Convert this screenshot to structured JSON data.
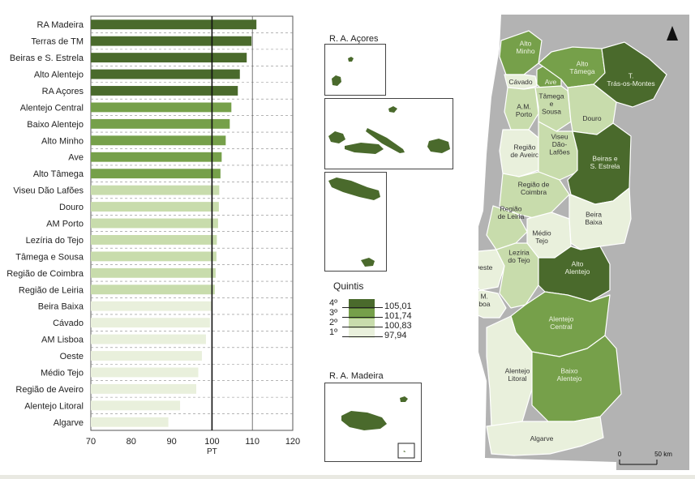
{
  "colors": {
    "q4": "#4a6a2c",
    "q3": "#76a04a",
    "q2": "#c8dcac",
    "q1": "#e9f0dc",
    "sea": "#b3b3b3",
    "map_line": "#ffffff"
  },
  "chart_data": {
    "type": "bar",
    "orientation": "horizontal",
    "categories": [
      "RA Madeira",
      "Terras de TM",
      "Beiras e S. Estrela",
      "Alto Alentejo",
      "RA Açores",
      "Alentejo Central",
      "Baixo Alentejo",
      "Alto Minho",
      "Ave",
      "Alto Tâmega",
      "Viseu Dão Lafões",
      "Douro",
      "AM Porto",
      "Lezíria do Tejo",
      "Tâmega e Sousa",
      "Região de Coimbra",
      "Região de Leiria",
      "Beira Baixa",
      "Cávado",
      "AM Lisboa",
      "Oeste",
      "Médio Tejo",
      "Região de Aveiro",
      "Alentejo Litoral",
      "Algarve"
    ],
    "values": [
      111.0,
      109.8,
      108.6,
      106.9,
      106.4,
      104.8,
      104.4,
      103.4,
      102.4,
      102.1,
      101.8,
      101.7,
      101.5,
      101.2,
      101.1,
      100.9,
      100.7,
      100.0,
      99.5,
      98.5,
      97.5,
      96.6,
      96.1,
      92.1,
      89.2
    ],
    "quintile": [
      4,
      4,
      4,
      4,
      4,
      3,
      3,
      3,
      3,
      3,
      2,
      2,
      2,
      2,
      2,
      2,
      2,
      1,
      1,
      1,
      1,
      1,
      1,
      1,
      1
    ],
    "xlim": [
      70,
      120
    ],
    "xticks": [
      "70",
      "80",
      "90",
      "100",
      "110",
      "120"
    ],
    "xlabel": "PT",
    "reference_line": 100,
    "grid": true
  },
  "insets": {
    "acores_title": "R. A. Açores",
    "madeira_title": "R. A. Madeira"
  },
  "legend": {
    "title": "Quintis",
    "classes": [
      {
        "label": "4º",
        "color_key": "q4",
        "threshold": "105,01"
      },
      {
        "label": "3º",
        "color_key": "q3",
        "threshold": "101,74"
      },
      {
        "label": "2º",
        "color_key": "q2",
        "threshold": "100,83"
      },
      {
        "label": "1º",
        "color_key": "q1",
        "threshold": "97,94"
      }
    ]
  },
  "map": {
    "regions": [
      {
        "name": "Alto Minho",
        "lines": [
          "Alto",
          "Minho"
        ],
        "q": 3
      },
      {
        "name": "Cávado",
        "lines": [
          "Cávado"
        ],
        "q": 1
      },
      {
        "name": "Ave",
        "lines": [
          "Ave"
        ],
        "q": 3
      },
      {
        "name": "Alto Tâmega",
        "lines": [
          "Alto",
          "Tâmega"
        ],
        "q": 3
      },
      {
        "name": "Terras de Trás-os-Montes",
        "lines": [
          "T.",
          "Trás-os-Montes"
        ],
        "q": 4
      },
      {
        "name": "A.M. Porto",
        "lines": [
          "A.M.",
          "Porto"
        ],
        "q": 2
      },
      {
        "name": "Tâmega e Sousa",
        "lines": [
          "Tâmega",
          "e",
          "Sousa"
        ],
        "q": 2
      },
      {
        "name": "Douro",
        "lines": [
          "Douro"
        ],
        "q": 2
      },
      {
        "name": "Região de Aveiro",
        "lines": [
          "Região",
          "de Aveiro"
        ],
        "q": 1
      },
      {
        "name": "Viseu Dão-Lafões",
        "lines": [
          "Viseu",
          "Dão-",
          "Lafões"
        ],
        "q": 2
      },
      {
        "name": "Beiras e S. Estrela",
        "lines": [
          "Beiras e",
          "S. Estrela"
        ],
        "q": 4
      },
      {
        "name": "Região de Coimbra",
        "lines": [
          "Região de",
          "Coimbra"
        ],
        "q": 2
      },
      {
        "name": "Região de Leiria",
        "lines": [
          "Região",
          "de Leiria"
        ],
        "q": 2
      },
      {
        "name": "Médio Tejo",
        "lines": [
          "Médio",
          "Tejo"
        ],
        "q": 1
      },
      {
        "name": "Beira Baixa",
        "lines": [
          "Beira",
          "Baixa"
        ],
        "q": 1
      },
      {
        "name": "Oeste",
        "lines": [
          "Oeste"
        ],
        "q": 1
      },
      {
        "name": "Lezíria do Tejo",
        "lines": [
          "Lezíria",
          "do Tejo"
        ],
        "q": 2
      },
      {
        "name": "Alto Alentejo",
        "lines": [
          "Alto",
          "Alentejo"
        ],
        "q": 4
      },
      {
        "name": "A. M. Lisboa",
        "lines": [
          "A. M.",
          "Lisboa"
        ],
        "q": 1
      },
      {
        "name": "Alentejo Central",
        "lines": [
          "Alentejo",
          "Central"
        ],
        "q": 3
      },
      {
        "name": "Alentejo Litoral",
        "lines": [
          "Alentejo",
          "Litoral"
        ],
        "q": 1
      },
      {
        "name": "Baixo Alentejo",
        "lines": [
          "Baixo",
          "Alentejo"
        ],
        "q": 3
      },
      {
        "name": "Algarve",
        "lines": [
          "Algarve"
        ],
        "q": 1
      }
    ],
    "scale_start": "0",
    "scale_end": "50 km"
  }
}
